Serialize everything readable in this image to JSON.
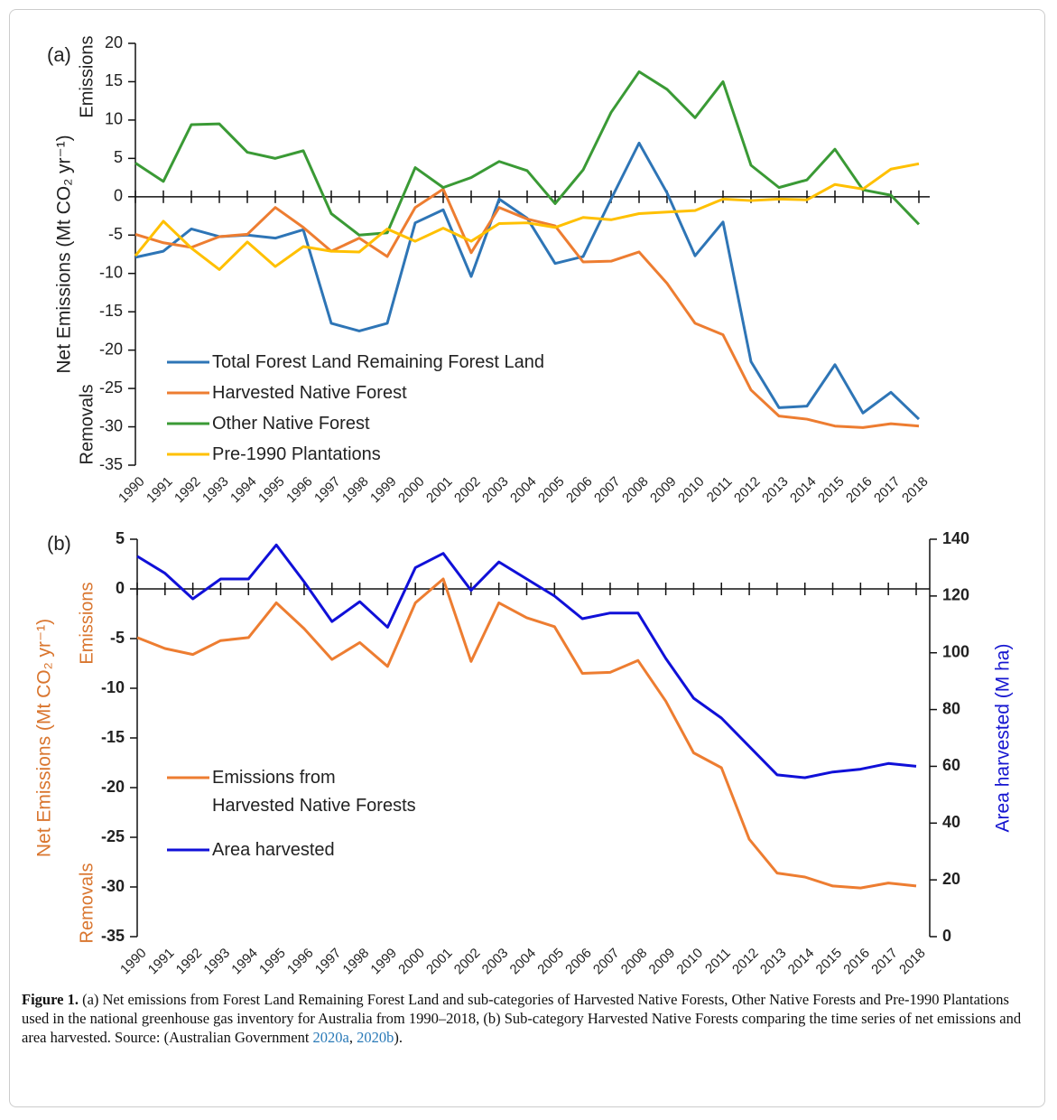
{
  "chart_data": [
    {
      "type": "line",
      "panel": "(a)",
      "ylabel": "Net Emissions (Mt CO₂ yr⁻¹)",
      "ylabel_top": "Emissions",
      "ylabel_bottom": "Removals",
      "label_color": "#222222",
      "categories": [
        "1990",
        "1991",
        "1992",
        "1993",
        "1994",
        "1995",
        "1996",
        "1997",
        "1998",
        "1999",
        "2000",
        "2001",
        "2002",
        "2003",
        "2004",
        "2005",
        "2006",
        "2007",
        "2008",
        "2009",
        "2010",
        "2011",
        "2012",
        "2013",
        "2014",
        "2015",
        "2016",
        "2017",
        "2018"
      ],
      "ylim": [
        -35,
        20
      ],
      "yticks": [
        -35,
        -30,
        -25,
        -20,
        -15,
        -10,
        -5,
        0,
        5,
        10,
        15,
        20
      ],
      "series": [
        {
          "name": "Total Forest Land Remaining Forest Land",
          "color": "#2e75b6",
          "values": [
            -7.9,
            -7.1,
            -4.2,
            -5.2,
            -5.0,
            -5.4,
            -4.3,
            -16.5,
            -17.5,
            -16.5,
            -3.4,
            -1.7,
            -10.4,
            -0.3,
            -2.8,
            -8.7,
            -7.8,
            -0.3,
            7.0,
            0.5,
            -7.7,
            -3.3,
            -21.5,
            -27.5,
            -27.3,
            -21.9,
            -28.2,
            -25.5,
            -29.0
          ]
        },
        {
          "name": "Harvested Native Forest",
          "color": "#ed7d31",
          "values": [
            -4.9,
            -6.0,
            -6.6,
            -5.2,
            -4.9,
            -1.4,
            -4.0,
            -7.1,
            -5.4,
            -7.8,
            -1.4,
            1.0,
            -7.3,
            -1.4,
            -2.9,
            -3.8,
            -8.5,
            -8.4,
            -7.2,
            -11.3,
            -16.5,
            -18.0,
            -25.2,
            -28.6,
            -29.0,
            -29.9,
            -30.1,
            -29.6,
            -29.9
          ]
        },
        {
          "name": "Other Native Forest",
          "color": "#3a9a35",
          "values": [
            4.4,
            2.0,
            9.4,
            9.5,
            5.8,
            5.0,
            6.0,
            -2.2,
            -5.0,
            -4.7,
            3.8,
            1.2,
            2.5,
            4.6,
            3.4,
            -0.9,
            3.5,
            11.0,
            16.3,
            14.0,
            10.3,
            15.0,
            4.1,
            1.2,
            2.2,
            6.2,
            0.9,
            0.2,
            -3.6
          ]
        },
        {
          "name": "Pre-1990 Plantations",
          "color": "#ffc000",
          "values": [
            -7.7,
            -3.2,
            -6.7,
            -9.5,
            -5.9,
            -9.1,
            -6.5,
            -7.1,
            -7.2,
            -4.2,
            -5.8,
            -4.1,
            -5.8,
            -3.5,
            -3.4,
            -4.0,
            -2.7,
            -3.0,
            -2.2,
            -2.0,
            -1.8,
            -0.3,
            -0.5,
            -0.3,
            -0.4,
            1.6,
            1.0,
            3.6,
            4.3
          ]
        }
      ]
    },
    {
      "type": "line",
      "panel": "(b)",
      "ylabel": "Net Emissions (Mt CO₂ yr⁻¹)",
      "ylabel_top": "Emissions",
      "ylabel_bottom": "Removals",
      "label_color": "#d9752e",
      "y2label": "Area harvested (M ha)",
      "y2label_color": "#1515d0",
      "categories": [
        "1990",
        "1991",
        "1992",
        "1993",
        "1994",
        "1995",
        "1996",
        "1997",
        "1998",
        "1999",
        "2000",
        "2001",
        "2002",
        "2003",
        "2004",
        "2005",
        "2006",
        "2007",
        "2008",
        "2009",
        "2010",
        "2011",
        "2012",
        "2013",
        "2014",
        "2015",
        "2016",
        "2017",
        "2018"
      ],
      "ylim": [
        -35,
        5
      ],
      "yticks": [
        -35,
        -30,
        -25,
        -20,
        -15,
        -10,
        -5,
        0,
        5
      ],
      "y2lim": [
        0,
        140
      ],
      "y2ticks": [
        0,
        20,
        40,
        60,
        80,
        100,
        120,
        140
      ],
      "series": [
        {
          "name": "Emissions from\nHarvested Native Forests",
          "color": "#ed7d31",
          "values": [
            -4.9,
            -6.0,
            -6.6,
            -5.2,
            -4.9,
            -1.4,
            -4.0,
            -7.1,
            -5.4,
            -7.8,
            -1.4,
            1.0,
            -7.3,
            -1.4,
            -2.9,
            -3.8,
            -8.5,
            -8.4,
            -7.2,
            -11.3,
            -16.5,
            -18.0,
            -25.2,
            -28.6,
            -29.0,
            -29.9,
            -30.1,
            -29.6,
            -29.9
          ]
        },
        {
          "name": "Area harvested",
          "color": "#1010d8",
          "axis": "y2",
          "values": [
            134,
            128,
            119,
            126,
            126,
            138,
            125,
            111,
            118,
            109,
            130,
            135,
            122,
            132,
            126,
            120,
            112,
            114,
            114,
            98,
            84,
            77,
            67,
            57,
            56,
            58,
            59,
            61,
            60
          ]
        }
      ]
    }
  ],
  "caption": {
    "label": "Figure 1.",
    "parts": [
      " (a) Net emissions from Forest Land Remaining Forest Land and sub-categories of Harvested Native Forests, Other Native Forests and Pre-1990 Plantations used in the national greenhouse gas inventory for Australia from 1990–2018, (b) Sub-category Harvested Native Forests comparing the time series of net emissions and area harvested. Source: (Australian Government ",
      "2020a",
      ", ",
      "2020b",
      ")."
    ]
  }
}
